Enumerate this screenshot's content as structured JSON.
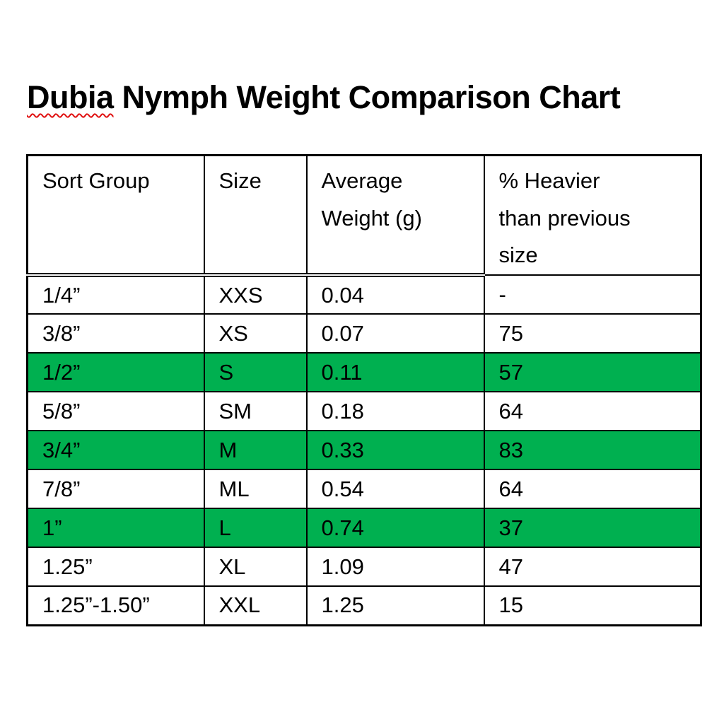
{
  "heading": {
    "misspelled_word": "Dubia",
    "rest": " Nymph Weight Comparison Chart",
    "full_text": "Dubia Nymph Weight Comparison Chart",
    "spellcheck_underline_color": "#e01010"
  },
  "table": {
    "columns": [
      "Sort Group",
      "Size",
      "Average\nWeight (g)",
      "% Heavier\nthan previous\nsize"
    ],
    "rows": [
      {
        "cells": [
          "1/4”",
          "XXS",
          "0.04",
          "-"
        ],
        "highlight": false
      },
      {
        "cells": [
          "3/8”",
          "XS",
          "0.07",
          "75"
        ],
        "highlight": false
      },
      {
        "cells": [
          "1/2”",
          "S",
          "0.11",
          "57"
        ],
        "highlight": true
      },
      {
        "cells": [
          "5/8”",
          "SM",
          "0.18",
          "64"
        ],
        "highlight": false
      },
      {
        "cells": [
          "3/4”",
          "M",
          "0.33",
          "83"
        ],
        "highlight": true
      },
      {
        "cells": [
          "7/8”",
          "ML",
          "0.54",
          "64"
        ],
        "highlight": false
      },
      {
        "cells": [
          "1”",
          "L",
          "0.74",
          "37"
        ],
        "highlight": true
      },
      {
        "cells": [
          "1.25”",
          "XL",
          "1.09",
          "47"
        ],
        "highlight": false
      },
      {
        "cells": [
          "1.25”-1.50”",
          "XXL",
          "1.25",
          "15"
        ],
        "highlight": false
      }
    ],
    "highlight_color": "#00b050",
    "border_color": "#000000",
    "text_color": "#000000"
  },
  "chart_data": {
    "type": "table",
    "title": "Dubia Nymph Weight Comparison Chart",
    "columns": [
      "Sort Group",
      "Size",
      "Average Weight (g)",
      "% Heavier than previous size"
    ],
    "rows": [
      [
        "1/4”",
        "XXS",
        "0.04",
        "-"
      ],
      [
        "3/8”",
        "XS",
        "0.07",
        "75"
      ],
      [
        "1/2”",
        "S",
        "0.11",
        "57"
      ],
      [
        "5/8”",
        "SM",
        "0.18",
        "64"
      ],
      [
        "3/4”",
        "M",
        "0.33",
        "83"
      ],
      [
        "7/8”",
        "ML",
        "0.54",
        "64"
      ],
      [
        "1”",
        "L",
        "0.74",
        "37"
      ],
      [
        "1.25”",
        "XL",
        "1.09",
        "47"
      ],
      [
        "1.25”-1.50”",
        "XXL",
        "1.25",
        "15"
      ]
    ],
    "highlighted_row_indices": [
      2,
      4,
      6
    ]
  }
}
